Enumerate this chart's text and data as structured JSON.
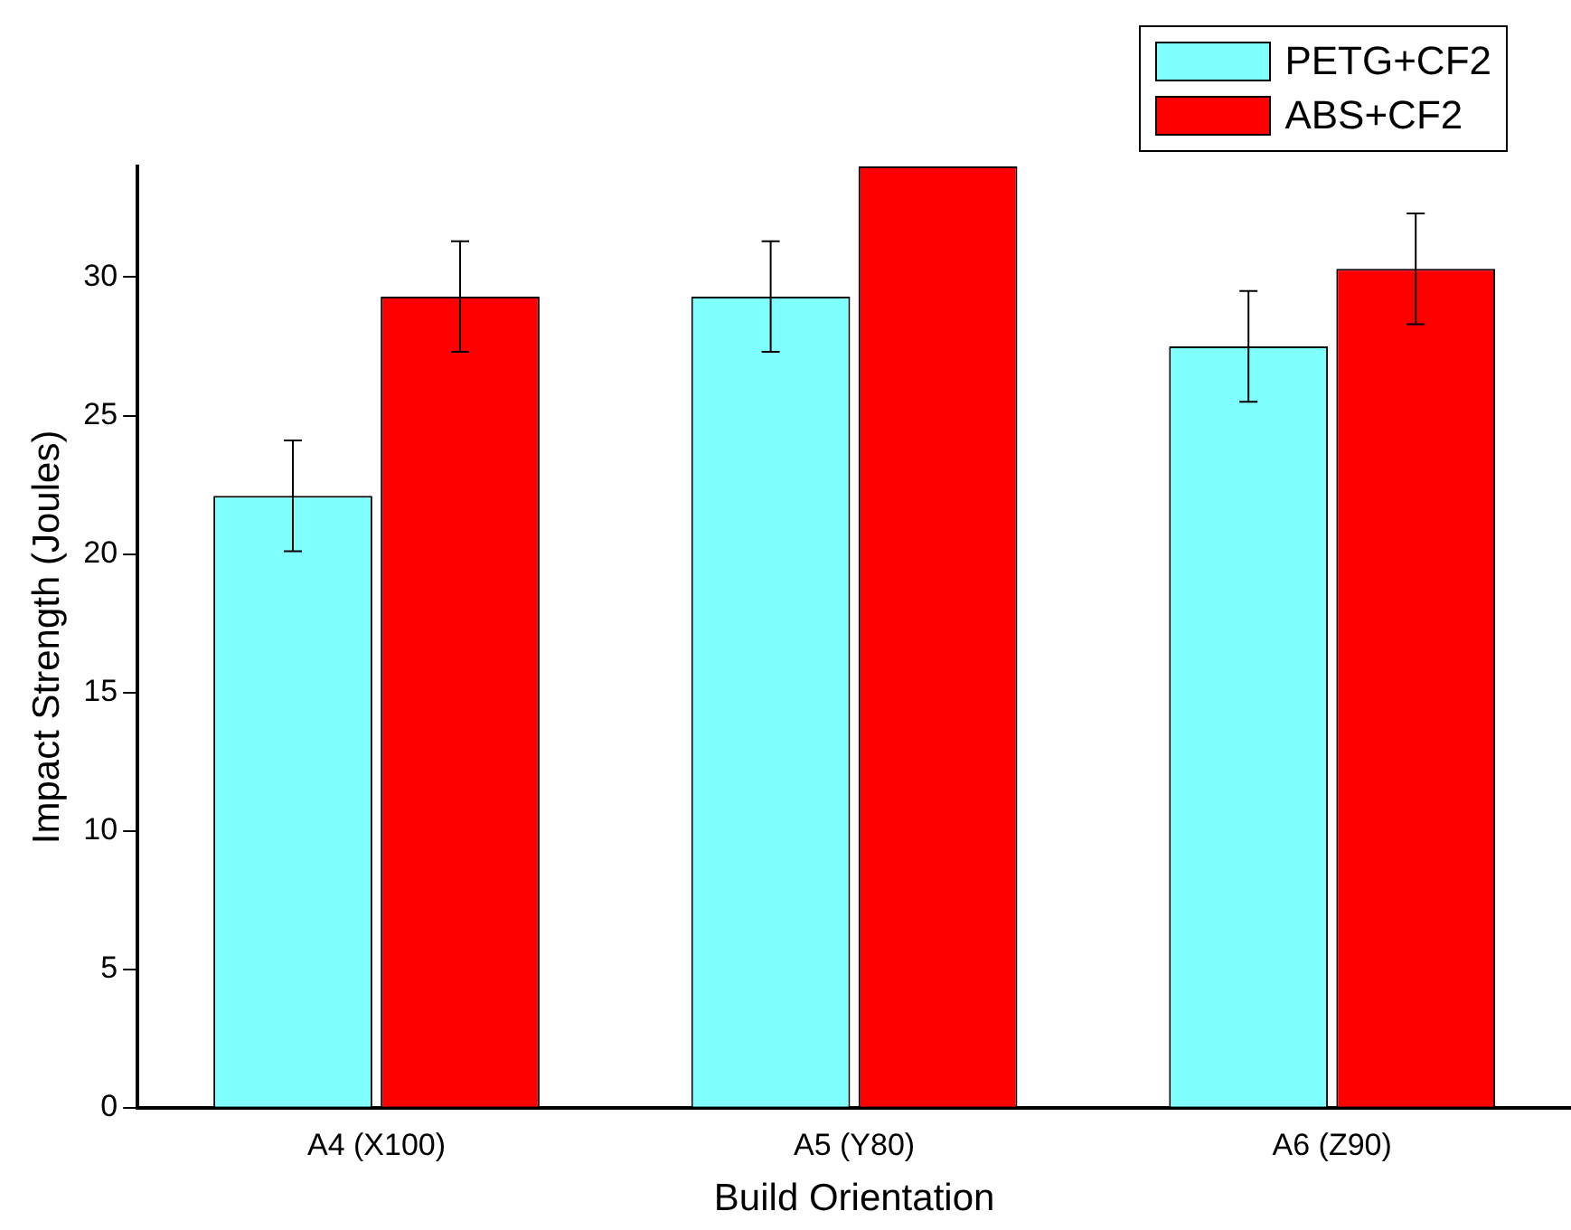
{
  "chart_data": {
    "type": "bar",
    "xlabel": "Build Orientation",
    "ylabel": "Impact Strength (Joules)",
    "categories": [
      "A4 (X100)",
      "A5 (Y80)",
      "A6 (Z90)"
    ],
    "series": [
      {
        "name": "PETG+CF2",
        "color": "#80ffff",
        "values": [
          22.1,
          29.3,
          27.5
        ],
        "errors": [
          2,
          2,
          2
        ]
      },
      {
        "name": "ABS+CF2",
        "color": "#ff0000",
        "values": [
          29.3,
          34,
          30.3
        ],
        "errors": [
          2,
          null,
          2
        ]
      }
    ],
    "ylim": [
      0,
      34
    ],
    "yticks": [
      0,
      5,
      10,
      15,
      20,
      25,
      30
    ],
    "grid": false,
    "legend": "top right"
  }
}
